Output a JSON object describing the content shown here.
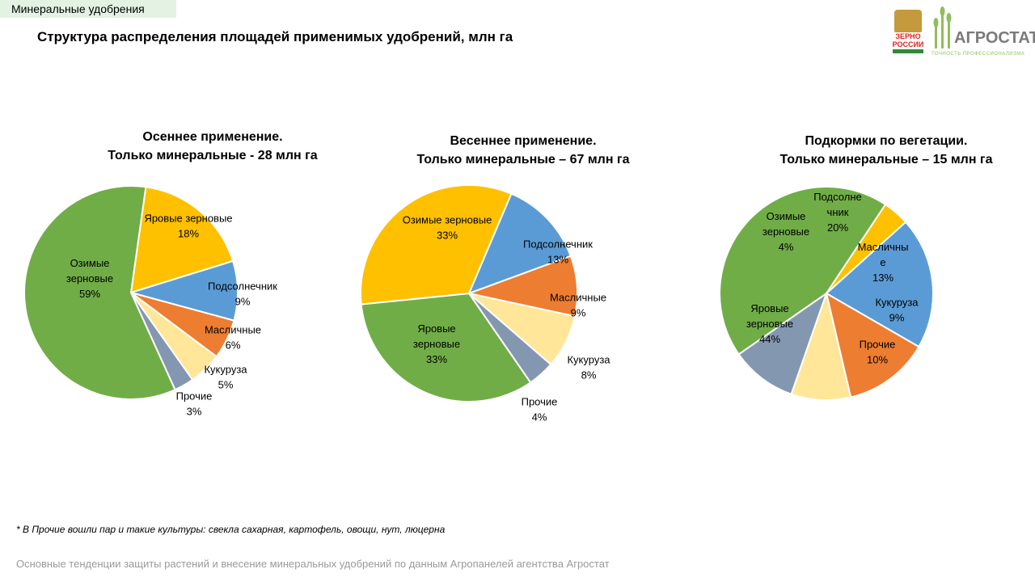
{
  "section_tag": "Минеральные удобрения",
  "page_title": "Структура распределения площадей применимых удобрений, млн га",
  "logos": {
    "zerno_line1": "ЗЕРНО",
    "zerno_line2": "РОССИИ",
    "agrostat_name": "АГРОСТАТ",
    "agrostat_tagline": "ТОЧНОСТЬ ПРОФЕССИОНАЛИЗМА"
  },
  "colors": {
    "green": "#70ad47",
    "gold": "#ffc000",
    "blue": "#5b9bd5",
    "orange": "#ed7d31",
    "light_yellow": "#ffe699",
    "gray_blue": "#8497b0"
  },
  "chart_data": [
    {
      "type": "pie",
      "title_line1": "Осеннее применение.",
      "title_line2": "Только минеральные - 28 млн га",
      "slices": [
        {
          "label_lines": [
            "Яровые зерновые"
          ],
          "value": 18,
          "value_label": "18%",
          "color": "#ffc000"
        },
        {
          "label_lines": [
            "Подсолнечник"
          ],
          "value": 9,
          "value_label": "9%",
          "color": "#5b9bd5"
        },
        {
          "label_lines": [
            "Масличные"
          ],
          "value": 6,
          "value_label": "6%",
          "color": "#ed7d31"
        },
        {
          "label_lines": [
            "Кукуруза"
          ],
          "value": 5,
          "value_label": "5%",
          "color": "#ffe699"
        },
        {
          "label_lines": [
            "Прочие"
          ],
          "value": 3,
          "value_label": "3%",
          "color": "#8497b0"
        },
        {
          "label_lines": [
            "Озимые",
            "зерновые"
          ],
          "value": 59,
          "value_label": "59%",
          "color": "#70ad47"
        }
      ]
    },
    {
      "type": "pie",
      "title_line1": "Весеннее применение.",
      "title_line2": "Только минеральные – 67 млн га",
      "slices": [
        {
          "label_lines": [
            "Подсолнечник"
          ],
          "value": 13,
          "value_label": "13%",
          "color": "#5b9bd5"
        },
        {
          "label_lines": [
            "Масличные"
          ],
          "value": 9,
          "value_label": "9%",
          "color": "#ed7d31"
        },
        {
          "label_lines": [
            "Кукуруза"
          ],
          "value": 8,
          "value_label": "8%",
          "color": "#ffe699"
        },
        {
          "label_lines": [
            "Прочие"
          ],
          "value": 4,
          "value_label": "4%",
          "color": "#8497b0"
        },
        {
          "label_lines": [
            "Яровые",
            "зерновые"
          ],
          "value": 33,
          "value_label": "33%",
          "color": "#70ad47"
        },
        {
          "label_lines": [
            "Озимые зерновые"
          ],
          "value": 33,
          "value_label": "33%",
          "color": "#ffc000"
        }
      ]
    },
    {
      "type": "pie",
      "title_line1": "Подкормки по вегетации.",
      "title_line2": "Только минеральные – 15 млн га",
      "slices": [
        {
          "label_lines": [
            "Подсолне",
            "чник"
          ],
          "value": 20,
          "value_label": "20%",
          "color": "#5b9bd5"
        },
        {
          "label_lines": [
            "Масличны",
            "е"
          ],
          "value": 13,
          "value_label": "13%",
          "color": "#ed7d31"
        },
        {
          "label_lines": [
            "Кукуруза"
          ],
          "value": 9,
          "value_label": "9%",
          "color": "#ffe699"
        },
        {
          "label_lines": [
            "Прочие"
          ],
          "value": 10,
          "value_label": "10%",
          "color": "#8497b0"
        },
        {
          "label_lines": [
            "Яровые",
            "зерновые"
          ],
          "value": 44,
          "value_label": "44%",
          "color": "#70ad47"
        },
        {
          "label_lines": [
            "Озимые",
            "зерновые"
          ],
          "value": 4,
          "value_label": "4%",
          "color": "#ffc000"
        }
      ]
    }
  ],
  "footnote": "* В Прочие вошли пар и такие культуры: свекла сахарная, картофель, овощи, нут, люцерна",
  "footer": "Основные тенденции защиты растений и внесение минеральных удобрений  по данным Агропанелей агентства Агростат"
}
